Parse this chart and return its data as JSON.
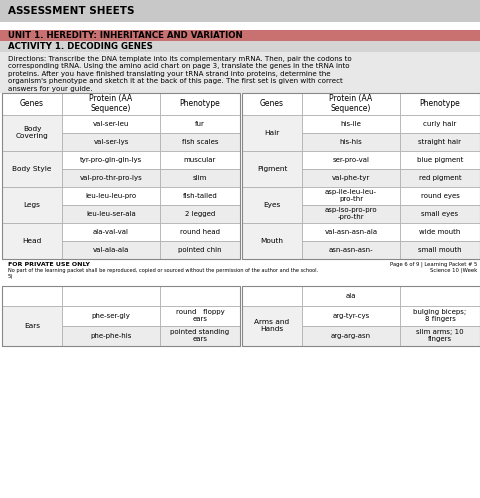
{
  "title": "ASSESSMENT SHEETS",
  "unit": "UNIT 1. HEREDITY: INHERITANCE AND VARIATION",
  "activity": "ACTIVITY 1. DECODING GENES",
  "directions_lines": [
    "Directions: Transcribe the DNA template into its complementary mRNA. Then, pair the codons to",
    "corresponding tRNA. Using the amino acid chart on page 3, translate the genes in the tRNA into",
    "proteins. After you have finished translating your tRNA strand into proteins, determine the",
    "organism's phenotype and sketch it at the back of this page. The first set is given with correct",
    "answers for your guide."
  ],
  "header_bg": "#c8c8c8",
  "unit_bg": "#c97070",
  "activity_bg": "#d4d4d4",
  "directions_bg": "#e8e8e8",
  "footer_text1": "FOR PRIVATE USE ONLY",
  "footer_text2": "No part of the learning packet shall be reproduced, copied or sourced without the permission of the author and the school.",
  "footer_right1": "Page 6 of 9 | Learning Packet # 5",
  "footer_right2": "Science 10 (Week",
  "footer_right3": "5)",
  "col_header_left": [
    "Genes",
    "Protein (AA\nSequence)",
    "Phenotype"
  ],
  "col_header_right": [
    "Genes",
    "Protein (AA\nSequence)",
    "Phenotype"
  ],
  "left_table": [
    {
      "category": "Body\nCovering",
      "rows": [
        {
          "protein": "val-ser-leu",
          "phenotype": "fur"
        },
        {
          "protein": "val-ser-lys",
          "phenotype": "fish scales"
        }
      ]
    },
    {
      "category": "Body Style",
      "rows": [
        {
          "protein": "tyr-pro-gln-gln-lys",
          "phenotype": "muscular"
        },
        {
          "protein": "val-pro-thr-pro-lys",
          "phenotype": "slim"
        }
      ]
    },
    {
      "category": "Legs",
      "rows": [
        {
          "protein": "leu-leu-leu-pro",
          "phenotype": "fish-tailed"
        },
        {
          "protein": "leu-leu-ser-ala",
          "phenotype": "2 legged"
        }
      ]
    },
    {
      "category": "Head",
      "rows": [
        {
          "protein": "ala-val-val",
          "phenotype": "round head"
        },
        {
          "protein": "val-ala-ala",
          "phenotype": "pointed chin"
        }
      ]
    }
  ],
  "right_table": [
    {
      "category": "Hair",
      "rows": [
        {
          "protein": "his-ile",
          "phenotype": "curly hair"
        },
        {
          "protein": "his-his",
          "phenotype": "straight hair"
        }
      ]
    },
    {
      "category": "Pigment",
      "rows": [
        {
          "protein": "ser-pro-val",
          "phenotype": "blue pigment"
        },
        {
          "protein": "val-phe-tyr",
          "phenotype": "red pigment"
        }
      ]
    },
    {
      "category": "Eyes",
      "rows": [
        {
          "protein": "asp-ile-leu-leu-\npro-thr",
          "phenotype": "round eyes"
        },
        {
          "protein": "asp-iso-pro-pro\n-pro-thr",
          "phenotype": "small eyes"
        }
      ]
    },
    {
      "category": "Mouth",
      "rows": [
        {
          "protein": "val-asn-asn-ala",
          "phenotype": "wide mouth"
        },
        {
          "protein": "asn-asn-asn-",
          "phenotype": "small mouth"
        }
      ]
    }
  ],
  "bottom_left_table": {
    "category": "Ears",
    "rows": [
      {
        "protein": "phe-ser-gly",
        "phenotype": "round   floppy\nears"
      },
      {
        "protein": "phe-phe-his",
        "phenotype": "pointed standing\nears"
      }
    ]
  },
  "bottom_right_table": {
    "category": "Arms and\nHands",
    "rows": [
      {
        "protein": "arg-tyr-cys",
        "phenotype": "bulging biceps;\n8 fingers"
      },
      {
        "protein": "arg-arg-asn",
        "phenotype": "slim arms; 10\nfingers"
      }
    ]
  },
  "bottom_right_extra": "ala"
}
